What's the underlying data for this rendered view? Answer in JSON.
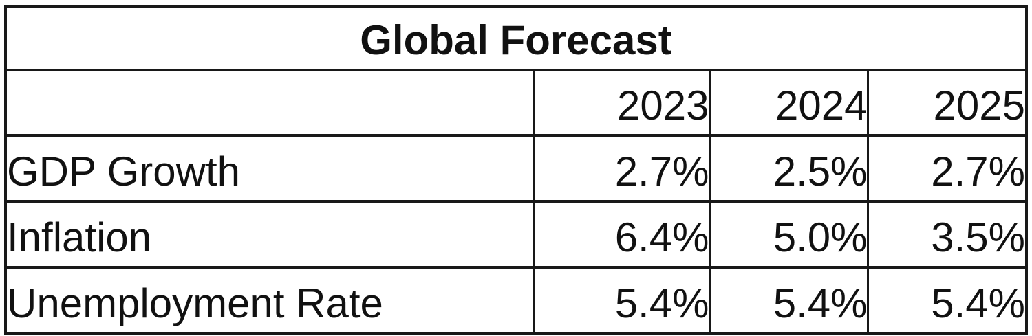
{
  "table": {
    "title": "Global Forecast"
  },
  "chart_data": {
    "type": "table",
    "title": "Global Forecast",
    "categories": [
      "2023",
      "2024",
      "2025"
    ],
    "series": [
      {
        "name": "GDP Growth",
        "values": [
          "2.7%",
          "2.5%",
          "2.7%"
        ]
      },
      {
        "name": "Inflation",
        "values": [
          "6.4%",
          "5.0%",
          "3.5%"
        ]
      },
      {
        "name": "Unemployment Rate",
        "values": [
          "5.4%",
          "5.4%",
          "5.4%"
        ]
      }
    ],
    "layout": {
      "title_row": "spans all columns, centered, bold",
      "value_alignment": "right",
      "label_alignment": "left",
      "grid": "all borders visible, black on white"
    }
  },
  "colors": {
    "border": "#181818",
    "text": "#111111",
    "background": "#ffffff"
  }
}
